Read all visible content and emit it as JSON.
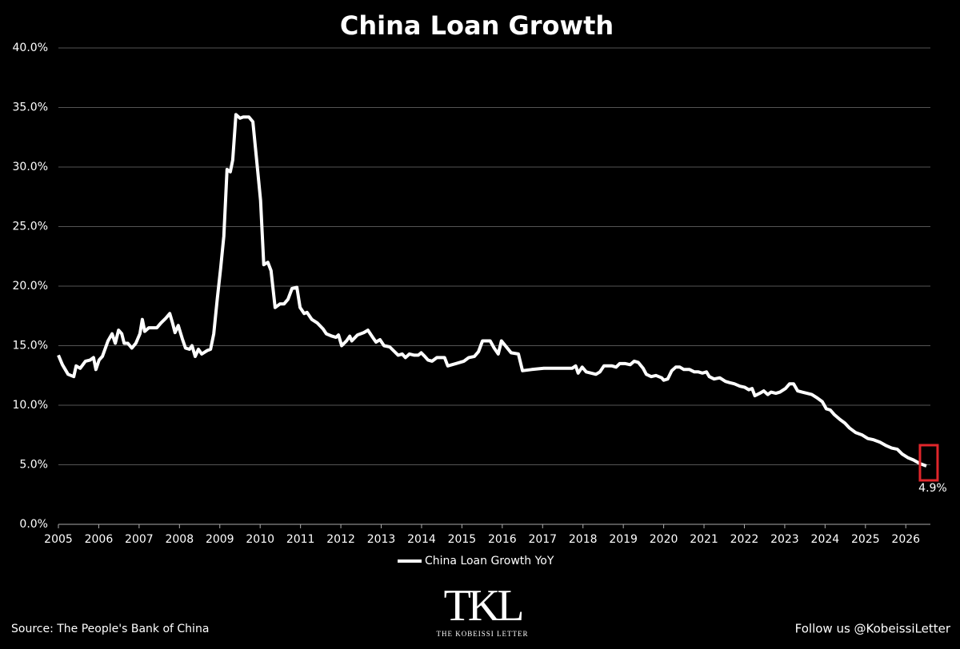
{
  "chart_data": {
    "type": "line",
    "title": "China Loan Growth",
    "x": [
      2005.0,
      2005.1,
      2005.24,
      2005.38,
      2005.44,
      2005.54,
      2005.67,
      2005.79,
      2005.87,
      2005.93,
      2006.01,
      2006.09,
      2006.23,
      2006.33,
      2006.41,
      2006.49,
      2006.57,
      2006.63,
      2006.72,
      2006.82,
      2006.92,
      2007.02,
      2007.08,
      2007.14,
      2007.24,
      2007.44,
      2007.54,
      2007.66,
      2007.76,
      2007.83,
      2007.89,
      2007.97,
      2008.07,
      2008.15,
      2008.25,
      2008.31,
      2008.39,
      2008.47,
      2008.55,
      2008.69,
      2008.77,
      2008.85,
      2008.94,
      2009.02,
      2009.1,
      2009.18,
      2009.26,
      2009.32,
      2009.4,
      2009.5,
      2009.58,
      2009.72,
      2009.82,
      2009.9,
      2010.01,
      2010.09,
      2010.19,
      2010.27,
      2010.37,
      2010.49,
      2010.59,
      2010.69,
      2010.79,
      2010.91,
      2010.99,
      2011.09,
      2011.16,
      2011.28,
      2011.42,
      2011.56,
      2011.64,
      2011.78,
      2011.88,
      2011.94,
      2012.02,
      2012.14,
      2012.22,
      2012.27,
      2012.41,
      2012.57,
      2012.67,
      2012.79,
      2012.87,
      2012.97,
      2013.07,
      2013.21,
      2013.33,
      2013.42,
      2013.52,
      2013.6,
      2013.7,
      2013.82,
      2013.92,
      2013.99,
      2014.08,
      2014.16,
      2014.26,
      2014.38,
      2014.57,
      2014.65,
      2014.85,
      2015.05,
      2015.17,
      2015.31,
      2015.41,
      2015.51,
      2015.7,
      2015.8,
      2015.9,
      2015.98,
      2016.1,
      2016.22,
      2016.4,
      2016.5,
      2016.73,
      2017.03,
      2017.43,
      2017.73,
      2017.82,
      2017.88,
      2017.98,
      2018.08,
      2018.32,
      2018.42,
      2018.52,
      2018.72,
      2018.82,
      2018.91,
      2019.05,
      2019.17,
      2019.27,
      2019.37,
      2019.49,
      2019.57,
      2019.69,
      2019.81,
      2019.95,
      2020.0,
      2020.1,
      2020.2,
      2020.3,
      2020.4,
      2020.5,
      2020.64,
      2020.76,
      2020.86,
      2020.96,
      2021.06,
      2021.13,
      2021.25,
      2021.39,
      2021.53,
      2021.63,
      2021.75,
      2021.89,
      2022.01,
      2022.11,
      2022.19,
      2022.26,
      2022.38,
      2022.48,
      2022.58,
      2022.66,
      2022.78,
      2022.88,
      2023.02,
      2023.12,
      2023.22,
      2023.32,
      2023.43,
      2023.55,
      2023.67,
      2023.81,
      2023.93,
      2024.03,
      2024.13,
      2024.23,
      2024.37,
      2024.49,
      2024.6,
      2024.76,
      2024.92,
      2025.06,
      2025.2,
      2025.36,
      2025.52,
      2025.65,
      2025.79,
      2025.91,
      2026.05,
      2026.19,
      2026.35,
      2026.51
    ],
    "series": [
      {
        "name": "China Loan Growth YoY",
        "color": "#ffffff",
        "values": [
          14.2,
          13.4,
          12.6,
          12.4,
          13.3,
          13.1,
          13.7,
          13.8,
          14.0,
          13.0,
          13.8,
          14.1,
          15.4,
          16.0,
          15.2,
          16.3,
          16.0,
          15.2,
          15.2,
          14.8,
          15.2,
          16.0,
          17.2,
          16.2,
          16.5,
          16.5,
          16.9,
          17.3,
          17.7,
          16.9,
          16.1,
          16.7,
          15.6,
          14.8,
          14.7,
          15.0,
          14.1,
          14.7,
          14.3,
          14.6,
          14.7,
          16.0,
          19.0,
          21.5,
          24.2,
          29.8,
          29.6,
          30.6,
          34.4,
          34.1,
          34.2,
          34.2,
          33.8,
          31.0,
          27.2,
          21.8,
          22.0,
          21.3,
          18.2,
          18.5,
          18.5,
          18.9,
          19.8,
          19.9,
          18.2,
          17.7,
          17.8,
          17.2,
          16.9,
          16.4,
          16.0,
          15.8,
          15.7,
          15.9,
          15.0,
          15.4,
          15.8,
          15.4,
          15.9,
          16.1,
          16.3,
          15.7,
          15.3,
          15.5,
          15.0,
          14.9,
          14.5,
          14.2,
          14.3,
          14.0,
          14.3,
          14.2,
          14.2,
          14.4,
          14.1,
          13.8,
          13.7,
          14.0,
          14.0,
          13.3,
          13.5,
          13.7,
          14.0,
          14.1,
          14.5,
          15.4,
          15.4,
          14.8,
          14.3,
          15.4,
          14.9,
          14.4,
          14.3,
          12.9,
          13.0,
          13.1,
          13.1,
          13.1,
          13.3,
          12.7,
          13.2,
          12.8,
          12.6,
          12.8,
          13.3,
          13.3,
          13.2,
          13.5,
          13.5,
          13.4,
          13.7,
          13.6,
          13.1,
          12.6,
          12.4,
          12.5,
          12.3,
          12.1,
          12.2,
          12.9,
          13.2,
          13.2,
          13.0,
          13.0,
          12.8,
          12.8,
          12.7,
          12.8,
          12.4,
          12.2,
          12.3,
          12.0,
          11.9,
          11.8,
          11.6,
          11.5,
          11.3,
          11.4,
          10.8,
          11.0,
          11.2,
          10.9,
          11.1,
          11.0,
          11.1,
          11.4,
          11.8,
          11.8,
          11.2,
          11.1,
          11.0,
          10.9,
          10.6,
          10.3,
          9.7,
          9.6,
          9.2,
          8.8,
          8.5,
          8.1,
          7.7,
          7.5,
          7.2,
          7.1,
          6.9,
          6.6,
          6.4,
          6.3,
          5.9,
          5.6,
          5.4,
          5.1,
          4.9
        ]
      }
    ],
    "annotation": "4.9%",
    "xlim": [
      2005,
      2026.61
    ],
    "xticks": [
      2005,
      2006,
      2007,
      2008,
      2009,
      2010,
      2011,
      2012,
      2013,
      2014,
      2015,
      2016,
      2017,
      2018,
      2019,
      2020,
      2021,
      2022,
      2023,
      2024,
      2025,
      2026
    ],
    "ylim": [
      0,
      40
    ],
    "yticks": [
      {
        "value": 0,
        "label": "0.0%"
      },
      {
        "value": 5,
        "label": "5.0%"
      },
      {
        "value": 10,
        "label": "10.0%"
      },
      {
        "value": 15,
        "label": "15.0%"
      },
      {
        "value": 20,
        "label": "20.0%"
      },
      {
        "value": 25,
        "label": "25.0%"
      },
      {
        "value": 30,
        "label": "30.0%"
      },
      {
        "value": 35,
        "label": "35.0%"
      },
      {
        "value": 40,
        "label": "40.0%"
      }
    ],
    "grid": true,
    "source": "Source: The People's Bank of China",
    "follow": "Follow us @KobeissiLetter",
    "logo": "TKL",
    "logo_subtitle": "THE KOBEISSI LETTER"
  }
}
